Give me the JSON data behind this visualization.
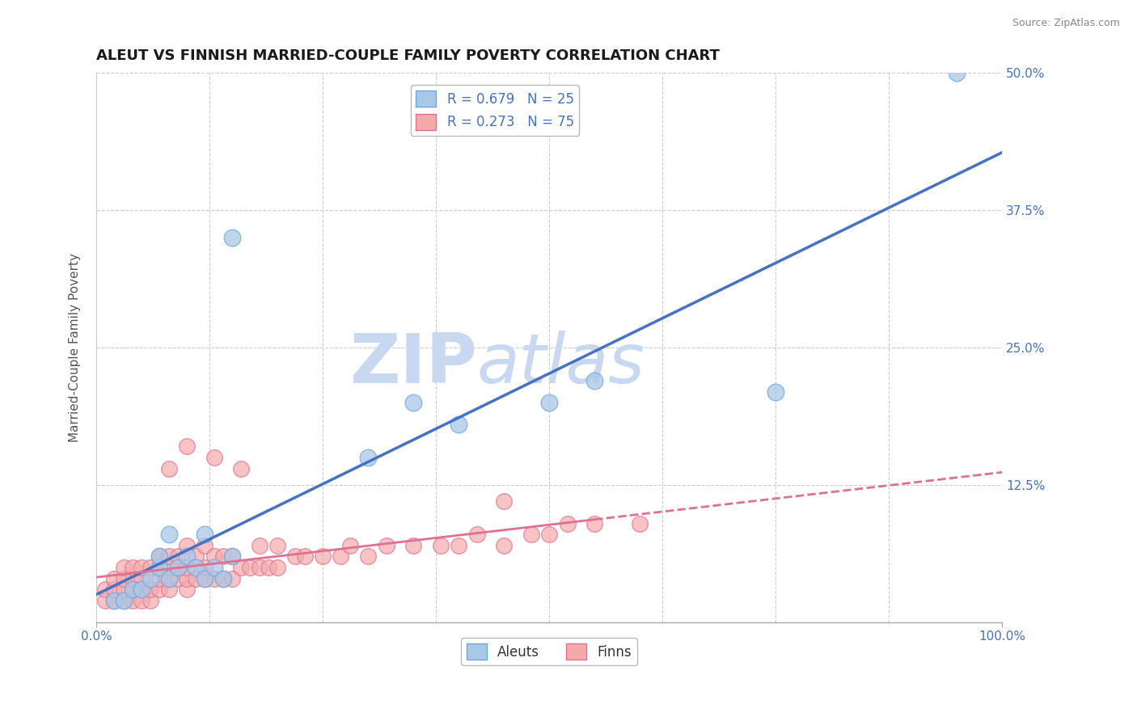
{
  "title": "ALEUT VS FINNISH MARRIED-COUPLE FAMILY POVERTY CORRELATION CHART",
  "source_text": "Source: ZipAtlas.com",
  "ylabel": "Married-Couple Family Poverty",
  "xlim": [
    0.0,
    1.0
  ],
  "ylim": [
    0.0,
    0.5
  ],
  "ytick_positions": [
    0.0,
    0.125,
    0.25,
    0.375,
    0.5
  ],
  "ytick_labels": [
    "",
    "12.5%",
    "25.0%",
    "37.5%",
    "50.0%"
  ],
  "xtick_positions": [
    0.0,
    1.0
  ],
  "xtick_labels": [
    "0.0%",
    "100.0%"
  ],
  "grid_yticks": [
    0.0,
    0.125,
    0.25,
    0.375,
    0.5
  ],
  "grid_xticks": [
    0.125,
    0.25,
    0.375,
    0.5,
    0.625,
    0.75,
    0.875
  ],
  "aleuts_color": "#a8c8e8",
  "finns_color": "#f4aaaa",
  "aleuts_edge": "#6fa8dc",
  "finns_edge": "#e07090",
  "aleut_line_color": "#4472c4",
  "finn_line_color": "#e07090",
  "aleut_R": 0.679,
  "aleut_N": 25,
  "finn_R": 0.273,
  "finn_N": 75,
  "aleuts_x": [
    0.02,
    0.03,
    0.04,
    0.05,
    0.06,
    0.07,
    0.07,
    0.08,
    0.09,
    0.1,
    0.11,
    0.12,
    0.13,
    0.14,
    0.15,
    0.3,
    0.35,
    0.4,
    0.5,
    0.55,
    0.15,
    0.75,
    0.95,
    0.12,
    0.08
  ],
  "aleuts_y": [
    0.02,
    0.02,
    0.03,
    0.03,
    0.04,
    0.05,
    0.06,
    0.04,
    0.05,
    0.06,
    0.05,
    0.04,
    0.05,
    0.04,
    0.06,
    0.15,
    0.2,
    0.18,
    0.2,
    0.22,
    0.35,
    0.21,
    0.5,
    0.08,
    0.08
  ],
  "finns_x": [
    0.01,
    0.01,
    0.02,
    0.02,
    0.02,
    0.03,
    0.03,
    0.03,
    0.03,
    0.04,
    0.04,
    0.04,
    0.04,
    0.05,
    0.05,
    0.05,
    0.05,
    0.06,
    0.06,
    0.06,
    0.07,
    0.07,
    0.07,
    0.07,
    0.08,
    0.08,
    0.08,
    0.08,
    0.09,
    0.09,
    0.09,
    0.1,
    0.1,
    0.1,
    0.1,
    0.11,
    0.11,
    0.12,
    0.12,
    0.12,
    0.13,
    0.13,
    0.14,
    0.14,
    0.15,
    0.15,
    0.16,
    0.17,
    0.18,
    0.18,
    0.19,
    0.2,
    0.2,
    0.22,
    0.23,
    0.25,
    0.27,
    0.28,
    0.3,
    0.32,
    0.35,
    0.38,
    0.4,
    0.42,
    0.45,
    0.48,
    0.5,
    0.52,
    0.55,
    0.6,
    0.08,
    0.1,
    0.13,
    0.16,
    0.45
  ],
  "finns_y": [
    0.02,
    0.03,
    0.02,
    0.03,
    0.04,
    0.02,
    0.03,
    0.04,
    0.05,
    0.02,
    0.03,
    0.04,
    0.05,
    0.02,
    0.03,
    0.04,
    0.05,
    0.02,
    0.03,
    0.05,
    0.03,
    0.04,
    0.05,
    0.06,
    0.03,
    0.04,
    0.05,
    0.06,
    0.04,
    0.05,
    0.06,
    0.03,
    0.04,
    0.05,
    0.07,
    0.04,
    0.06,
    0.04,
    0.05,
    0.07,
    0.04,
    0.06,
    0.04,
    0.06,
    0.04,
    0.06,
    0.05,
    0.05,
    0.05,
    0.07,
    0.05,
    0.05,
    0.07,
    0.06,
    0.06,
    0.06,
    0.06,
    0.07,
    0.06,
    0.07,
    0.07,
    0.07,
    0.07,
    0.08,
    0.07,
    0.08,
    0.08,
    0.09,
    0.09,
    0.09,
    0.14,
    0.16,
    0.15,
    0.14,
    0.11
  ],
  "watermark_zip": "ZIP",
  "watermark_atlas": "atlas",
  "watermark_color_zip": "#c8d8f0",
  "watermark_color_atlas": "#c8d8f0",
  "grid_color": "#cccccc",
  "tick_label_color": "#4472c4",
  "background_color": "#ffffff",
  "title_fontsize": 13,
  "axis_label_fontsize": 11,
  "tick_fontsize": 11,
  "legend_fontsize": 12
}
